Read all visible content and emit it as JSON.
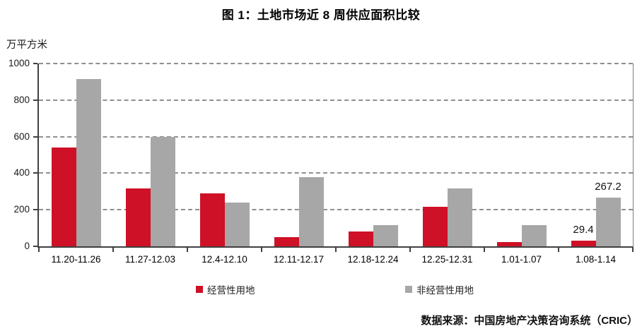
{
  "chart_data": {
    "type": "bar",
    "title": "图 1：土地市场近 8 周供应面积比较",
    "unit_label": "万平方米",
    "categories": [
      "11.20-11.26",
      "11.27-12.03",
      "12.4-12.10",
      "12.11-12.17",
      "12.18-12.24",
      "12.25-12.31",
      "1.01-1.07",
      "1.08-1.14"
    ],
    "series": [
      {
        "name": "经营性用地",
        "color": "#CE1126",
        "values": [
          540,
          315,
          290,
          52,
          82,
          215,
          25,
          29.4
        ]
      },
      {
        "name": "非经营性用地",
        "color": "#A7A7A7",
        "values": [
          915,
          600,
          240,
          380,
          115,
          315,
          115,
          267.2
        ]
      }
    ],
    "point_labels": [
      {
        "category_index": 7,
        "series_index": 0,
        "text": "29.4"
      },
      {
        "category_index": 7,
        "series_index": 1,
        "text": "267.2"
      }
    ],
    "ylim": [
      0,
      1000
    ],
    "yticks": [
      0,
      200,
      400,
      600,
      800,
      1000
    ],
    "grid": "horizontal-dashed",
    "legend_position": "bottom"
  },
  "source": "数据来源：中国房地产决策咨询系统（CRIC）"
}
